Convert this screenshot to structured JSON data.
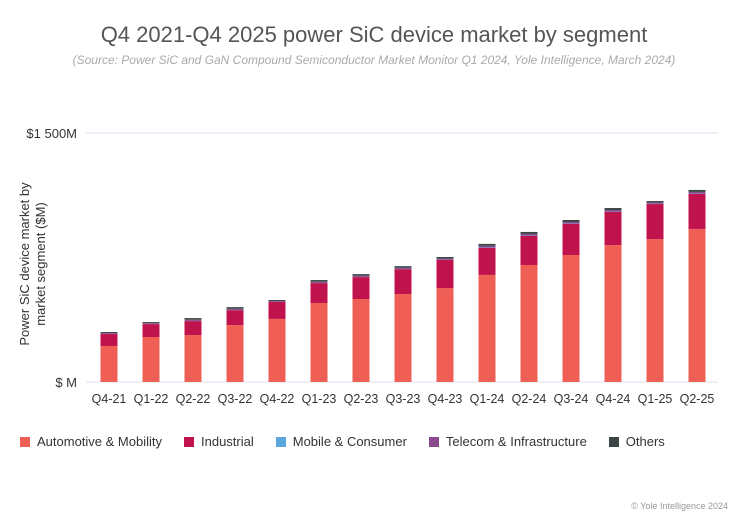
{
  "chart_data": {
    "type": "bar",
    "stacked": true,
    "title": "Q4 2021-Q4 2025 power SiC device market by segment",
    "subtitle": "(Source: Power SiC and GaN Compound Semiconductor Market Monitor Q1 2024, Yole Intelligence, March 2024)",
    "ylabel": "Power SiC device market by market segment ($M)",
    "xlabel": "",
    "ylim": [
      0,
      1500
    ],
    "yticks": [
      {
        "value": 0,
        "label": "$ M"
      },
      {
        "value": 1500,
        "label": "$1 500M"
      }
    ],
    "grid": false,
    "legend_position": "bottom",
    "categories": [
      "Q4-21",
      "Q1-22",
      "Q2-22",
      "Q3-22",
      "Q4-22",
      "Q1-23",
      "Q2-23",
      "Q3-23",
      "Q4-23",
      "Q1-24",
      "Q2-24",
      "Q3-24",
      "Q4-24",
      "Q1-25",
      "Q2-25"
    ],
    "series": [
      {
        "name": "Automotive & Mobility",
        "color": "#ef5f55",
        "values": [
          217,
          271,
          283,
          343,
          380,
          476,
          500,
          530,
          566,
          645,
          705,
          765,
          825,
          861,
          922
        ]
      },
      {
        "name": "Industrial",
        "color": "#c0134d",
        "values": [
          72,
          78,
          84,
          90,
          102,
          120,
          132,
          150,
          169,
          163,
          175,
          187,
          199,
          211,
          211
        ]
      },
      {
        "name": "Mobile & Consumer",
        "color": "#5aa7dd",
        "values": [
          1,
          1,
          1,
          1,
          1,
          1,
          1,
          1,
          1,
          2,
          2,
          2,
          2,
          2,
          2
        ]
      },
      {
        "name": "Telecom & Infrastructure",
        "color": "#8a4a8c",
        "values": [
          5,
          5,
          7,
          7,
          5,
          7,
          7,
          7,
          7,
          10,
          10,
          10,
          10,
          7,
          10
        ]
      },
      {
        "name": "Others",
        "color": "#3d4647",
        "values": [
          6,
          6,
          10,
          10,
          6,
          10,
          10,
          10,
          10,
          12,
          12,
          12,
          12,
          9,
          12
        ]
      }
    ]
  },
  "footer": {
    "copyright": "© Yole Intelligence 2024"
  }
}
